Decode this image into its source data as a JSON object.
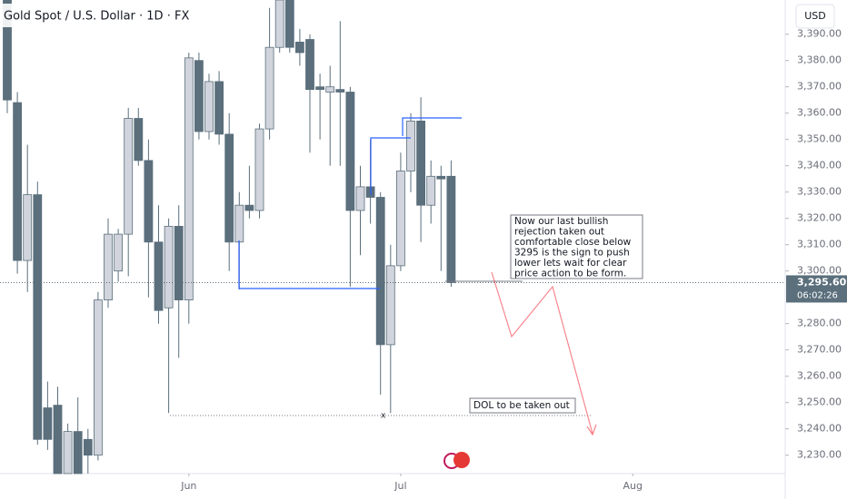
{
  "chart_data": {
    "type": "candlestick",
    "title": "Gold Spot / U.S. Dollar · 1D · FX",
    "currency": "USD",
    "open": [
      3403,
      3364,
      3304,
      3329,
      3248,
      3249,
      3223,
      3239,
      3236,
      3230,
      3289,
      3300,
      3314,
      3358,
      3342,
      3311,
      3286,
      3317,
      3289,
      3380,
      3353,
      3372,
      3352,
      3311,
      3325,
      3323,
      3354,
      3385,
      3403,
      3387,
      3388,
      3370,
      3368,
      3369,
      3368,
      3323,
      3332,
      3328,
      3272,
      3302,
      3338,
      3357,
      3325,
      3336,
      3336
    ],
    "high": [
      3403,
      3368,
      3348,
      3334,
      3258,
      3256,
      3242,
      3252,
      3240,
      3292,
      3320,
      3316,
      3362,
      3362,
      3350,
      3325,
      3320,
      3325,
      3383,
      3383,
      3375,
      3376,
      3360,
      3330,
      3340,
      3356,
      3400,
      3403,
      3403,
      3392,
      3390,
      3375,
      3378,
      3395,
      3370,
      3340,
      3350,
      3330,
      3310,
      3345,
      3360,
      3366,
      3342,
      3340,
      3342
    ],
    "low": [
      3360,
      3299,
      3292,
      3234,
      3232,
      3223,
      3223,
      3223,
      3223,
      3228,
      3286,
      3296,
      3298,
      3340,
      3290,
      3280,
      3246,
      3267,
      3280,
      3350,
      3350,
      3348,
      3300,
      3293,
      3320,
      3320,
      3350,
      3383,
      3383,
      3378,
      3345,
      3350,
      3340,
      3340,
      3294,
      3306,
      3318,
      3253,
      3246,
      3300,
      3330,
      3311,
      3318,
      3300,
      3294
    ],
    "close": [
      3365,
      3304,
      3329,
      3236,
      3236,
      3223,
      3239,
      3223,
      3230,
      3289,
      3314,
      3314,
      3358,
      3342,
      3311,
      3285,
      3317,
      3289,
      3381,
      3353,
      3372,
      3352,
      3311,
      3325,
      3323,
      3354,
      3385,
      3403,
      3385,
      3383,
      3369,
      3369,
      3370,
      3368,
      3323,
      3332,
      3328,
      3272,
      3302,
      3338,
      3357,
      3325,
      3336,
      3335,
      3295.6
    ],
    "bull_color": "#d1d4dc",
    "bear_color": "#5b6f7c",
    "ylim": [
      3223,
      3403
    ],
    "yticks": [
      {
        "value": 3230,
        "label": "3,230.00"
      },
      {
        "value": 3240,
        "label": "3,240.00"
      },
      {
        "value": 3250,
        "label": "3,250.00"
      },
      {
        "value": 3260,
        "label": "3,260.00"
      },
      {
        "value": 3270,
        "label": "3,270.00"
      },
      {
        "value": 3280,
        "label": "3,280.00"
      },
      {
        "value": 3300,
        "label": "3,300.00"
      },
      {
        "value": 3310,
        "label": "3,310.00"
      },
      {
        "value": 3320,
        "label": "3,320.00"
      },
      {
        "value": 3330,
        "label": "3,330.00"
      },
      {
        "value": 3340,
        "label": "3,340.00"
      },
      {
        "value": 3350,
        "label": "3,350.00"
      },
      {
        "value": 3360,
        "label": "3,360.00"
      },
      {
        "value": 3370,
        "label": "3,370.00"
      },
      {
        "value": 3380,
        "label": "3,380.00"
      },
      {
        "value": 3390,
        "label": "3,390.00"
      }
    ],
    "xticks": [
      {
        "value": 18,
        "label": "Jun"
      },
      {
        "value": 39,
        "label": "Jul"
      },
      {
        "value": 62,
        "label": "Aug"
      }
    ],
    "last_price": {
      "value": 3295.6,
      "label": "3,295.60"
    },
    "countdown": "06:02:26",
    "annotations": [
      {
        "lines": [
          "Now our last bullish",
          "rejection taken out",
          "comfortable close below",
          "3295 is the sign to push",
          "lower lets wait for clear",
          "price action to be form."
        ]
      },
      {
        "lines": [
          "DOL to be taken out"
        ]
      }
    ]
  }
}
